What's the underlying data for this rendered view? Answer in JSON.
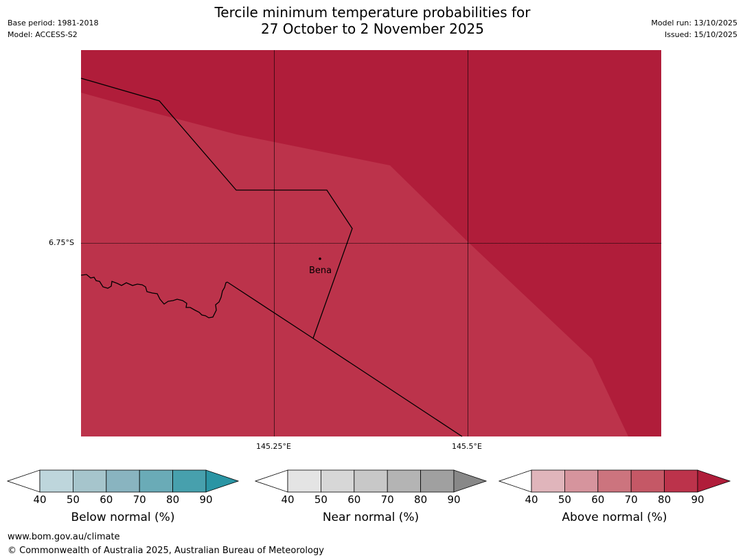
{
  "title": {
    "line1": "Tercile minimum temperature probabilities for",
    "line2": "27 October to 2 November 2025"
  },
  "meta_left": {
    "base_period": "Base period: 1981-2018",
    "model": "Model: ACCESS-S2"
  },
  "meta_right": {
    "model_run": "Model run: 13/10/2025",
    "issued": "Issued: 15/10/2025"
  },
  "map": {
    "lat_label": "6.75°S",
    "lon_labels": [
      "145.25°E",
      "145.5°E"
    ],
    "place": "Bena",
    "colors": {
      "above_70_80": "#bc334b",
      "above_80_90": "#b01d3a",
      "boundary": "#000000",
      "grid": "#000000"
    }
  },
  "legends": [
    {
      "label": "Below normal (%)",
      "ticks": [
        "40",
        "50",
        "60",
        "70",
        "80",
        "90"
      ],
      "under_color": "#ffffff",
      "colors": [
        "#bed6dc",
        "#a6c5cc",
        "#89b4c0",
        "#6aabb7",
        "#47a0ad"
      ],
      "over_color": "#2a95a4"
    },
    {
      "label": "Near normal (%)",
      "ticks": [
        "40",
        "50",
        "60",
        "70",
        "80",
        "90"
      ],
      "under_color": "#ffffff",
      "colors": [
        "#e4e4e4",
        "#d7d7d7",
        "#c8c8c8",
        "#b4b4b4",
        "#a0a0a0"
      ],
      "over_color": "#888888"
    },
    {
      "label": "Above normal (%)",
      "ticks": [
        "40",
        "50",
        "60",
        "70",
        "80",
        "90"
      ],
      "under_color": "#ffffff",
      "colors": [
        "#e0b5bb",
        "#d6949d",
        "#cc747e",
        "#c55866",
        "#bc334b"
      ],
      "over_color": "#b01d3a"
    }
  ],
  "footer": {
    "website": "www.bom.gov.au/climate",
    "copyright": "© Commonwealth of Australia 2025, Australian Bureau of Meteorology"
  }
}
